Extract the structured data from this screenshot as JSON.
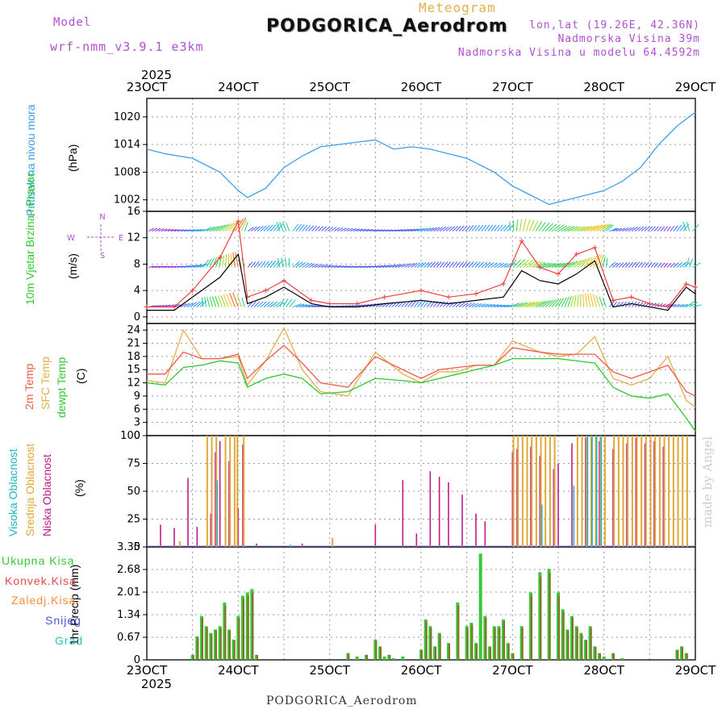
{
  "header": {
    "model_label": "Model",
    "model_name": "wrf-nmm_v3.9.1  e3km",
    "meteogram": "Meteogram",
    "title": "PODGORICA_Aerodrom",
    "lonlat": "lon,lat (19.26E, 42.36N)",
    "elevation": "Nadmorska Visina 39m",
    "model_elevation": "Nadmorska Visina u modelu 64.4592m"
  },
  "footer": {
    "station": "PODGORICA_Aerodrom",
    "credit": "made by Angel"
  },
  "colors": {
    "pressure": "#3aa0e8",
    "wind_black": "#000000",
    "wind_red": "#f04040",
    "temp2m": "#f05a4a",
    "sfc": "#e0b04a",
    "dewpt": "#2ec82e",
    "high_cloud": "#22b3c8",
    "mid_cloud": "#e0a838",
    "low_cloud": "#c01a8a",
    "total_precip": "#38c838",
    "conv_precip": "#e84848",
    "frozen": "#ff8c3a",
    "snow": "#5050e0",
    "grad": "#30c0c0",
    "label_purple": "#b04fd0"
  },
  "chart_data": [
    {
      "type": "line",
      "id": "pressure",
      "ylabel_name": "Pritisak na nivou mora",
      "ylabel_unit": "(hPa)",
      "yticks": [
        "1002",
        "1008",
        "1014",
        "1020"
      ],
      "ylim": [
        999.5,
        1024
      ],
      "x_start": "23OCT",
      "x_end": "29OCT",
      "x_unit": "days",
      "series": [
        {
          "name": "Pritisak",
          "x": [
            0,
            0.2,
            0.5,
            0.8,
            1,
            1.1,
            1.3,
            1.5,
            1.7,
            1.9,
            2.1,
            2.3,
            2.5,
            2.7,
            2.9,
            3.1,
            3.3,
            3.5,
            3.8,
            4.0,
            4.2,
            4.4,
            4.7,
            5.0,
            5.2,
            5.4,
            5.6,
            5.8,
            6.0
          ],
          "y": [
            1013,
            1012,
            1011,
            1008,
            1004,
            1002.5,
            1004.5,
            1009,
            1011.5,
            1013.5,
            1014,
            1014.5,
            1015,
            1013,
            1013.5,
            1013,
            1012,
            1011,
            1008,
            1005,
            1003,
            1001,
            1002.5,
            1004,
            1006,
            1009,
            1014,
            1018,
            1021
          ]
        }
      ]
    },
    {
      "type": "line",
      "id": "wind",
      "ylabel_name": "10m Vjetar Brzina i Pravac",
      "ylabel_unit": "(m/s)",
      "compass": [
        "N",
        "E",
        "S",
        "W"
      ],
      "yticks": [
        "0",
        "4",
        "8",
        "12",
        "16"
      ],
      "ylim": [
        -1,
        16
      ],
      "series": [
        {
          "name": "Brzina",
          "x": [
            0,
            0.3,
            0.5,
            0.8,
            1,
            1.1,
            1.3,
            1.5,
            1.8,
            2.0,
            2.3,
            2.6,
            3.0,
            3.3,
            3.6,
            3.9,
            4.1,
            4.3,
            4.5,
            4.7,
            4.9,
            5.1,
            5.3,
            5.5,
            5.7,
            5.9,
            6.0
          ],
          "y": [
            1,
            1,
            3,
            6,
            9.5,
            2,
            3,
            4.5,
            2,
            1.5,
            1.5,
            2,
            2.5,
            2,
            2.5,
            3,
            7,
            5.5,
            5,
            6.5,
            8.5,
            1.5,
            2,
            1.5,
            1,
            4.5,
            3.5
          ]
        },
        {
          "name": "Udari",
          "x": [
            0,
            0.3,
            0.5,
            0.8,
            1,
            1.1,
            1.3,
            1.5,
            1.8,
            2.0,
            2.3,
            2.6,
            3.0,
            3.3,
            3.6,
            3.9,
            4.1,
            4.3,
            4.5,
            4.7,
            4.9,
            5.1,
            5.3,
            5.5,
            5.7,
            5.9,
            6.0
          ],
          "y": [
            1.5,
            1.5,
            4,
            9,
            14.5,
            3,
            4,
            5.5,
            2.5,
            2,
            2,
            3,
            4,
            3,
            3.5,
            5,
            11.5,
            7.5,
            6.5,
            9.5,
            10.5,
            2.5,
            3,
            2,
            1.5,
            5,
            4.5
          ]
        }
      ]
    },
    {
      "type": "line",
      "id": "temperature",
      "ylabels": [
        "2m Temp",
        "SFC Temp",
        "dewpt Temp"
      ],
      "ylabel_unit": "(C)",
      "yticks": [
        "0",
        "3",
        "6",
        "9",
        "12",
        "15",
        "18",
        "21",
        "24"
      ],
      "ylim": [
        0,
        25.5
      ],
      "series": [
        {
          "name": "2m Temp",
          "x": [
            0,
            0.2,
            0.4,
            0.6,
            0.8,
            1.0,
            1.1,
            1.3,
            1.5,
            1.7,
            1.9,
            2.2,
            2.5,
            2.8,
            3.0,
            3.2,
            3.4,
            3.6,
            3.8,
            4.0,
            4.3,
            4.5,
            4.7,
            4.9,
            5.1,
            5.3,
            5.5,
            5.7,
            5.9,
            6.0
          ],
          "y": [
            14,
            14,
            19,
            17.5,
            17.5,
            18.5,
            13,
            17,
            20.5,
            16.5,
            12,
            11,
            18,
            15,
            13,
            15,
            15.5,
            16,
            16,
            20,
            19,
            18.5,
            18.5,
            18.5,
            14.5,
            13,
            14.5,
            16,
            10,
            9
          ]
        },
        {
          "name": "SFC Temp",
          "x": [
            0,
            0.2,
            0.4,
            0.6,
            0.8,
            1.0,
            1.1,
            1.3,
            1.5,
            1.7,
            1.9,
            2.2,
            2.5,
            2.8,
            3.0,
            3.2,
            3.4,
            3.6,
            3.8,
            4.0,
            4.3,
            4.5,
            4.7,
            4.9,
            5.1,
            5.3,
            5.5,
            5.7,
            5.9,
            6.0
          ],
          "y": [
            12.5,
            12,
            24,
            17.5,
            17.5,
            18,
            11.5,
            17,
            24.5,
            15,
            10,
            9,
            19,
            14,
            12,
            14.5,
            14.5,
            16,
            16,
            21.5,
            19,
            18,
            18.5,
            22.5,
            13,
            11.5,
            13,
            18,
            8,
            6.5
          ]
        },
        {
          "name": "dewpt Temp",
          "x": [
            0,
            0.2,
            0.4,
            0.6,
            0.8,
            1.0,
            1.1,
            1.3,
            1.5,
            1.7,
            1.9,
            2.2,
            2.5,
            2.8,
            3.0,
            3.2,
            3.4,
            3.6,
            3.8,
            4.0,
            4.3,
            4.5,
            4.7,
            4.9,
            5.1,
            5.3,
            5.5,
            5.7,
            5.9,
            6.0
          ],
          "y": [
            12,
            11.5,
            15.5,
            16,
            17,
            16.5,
            11,
            13,
            14,
            13,
            9.5,
            10,
            13,
            12.5,
            12,
            13,
            14,
            15,
            16,
            17.5,
            17.5,
            17.5,
            17,
            16.5,
            11,
            9,
            8.5,
            9.5,
            4,
            1
          ]
        }
      ]
    },
    {
      "type": "bar",
      "id": "clouds",
      "ylabels": [
        "Visoka Oblacnost",
        "Srednja Oblacnost",
        "Niska Oblacnost"
      ],
      "ylabel_unit": "(%)",
      "yticks": [
        "0",
        "25",
        "50",
        "75",
        "100"
      ],
      "ylim": [
        0,
        100
      ],
      "series": [
        {
          "name": "Niska Oblacnost",
          "x": [
            0.15,
            0.3,
            0.45,
            0.55,
            0.7,
            0.75,
            0.8,
            0.9,
            1.0,
            1.05,
            1.2,
            1.7,
            2.5,
            2.8,
            2.95,
            3.1,
            3.2,
            3.3,
            3.45,
            3.6,
            3.7,
            4.0,
            4.05,
            4.2,
            4.3,
            4.45,
            4.5,
            4.65,
            4.8,
            4.95,
            5.1,
            5.25,
            5.35,
            5.45,
            5.55,
            5.65
          ],
          "values": [
            20,
            17,
            62,
            18,
            30,
            85,
            95,
            77,
            35,
            92,
            3,
            3,
            20,
            60,
            12,
            68,
            63,
            58,
            47,
            30,
            23,
            85,
            88,
            90,
            82,
            70,
            75,
            93,
            98,
            95,
            88,
            93,
            98,
            93,
            95,
            90
          ]
        },
        {
          "name": "Srednja Oblacnost",
          "x": [
            0.35,
            0.65,
            0.7,
            0.75,
            0.85,
            0.9,
            0.95,
            0.98,
            1.05,
            2.02,
            4.0,
            4.05,
            4.1,
            4.15,
            4.2,
            4.25,
            4.3,
            4.35,
            4.4,
            4.45,
            4.7,
            4.75,
            4.8,
            4.85,
            4.9,
            4.95,
            5.0,
            5.1,
            5.15,
            5.2,
            5.25,
            5.3,
            5.35,
            5.4,
            5.45,
            5.5,
            5.55,
            5.6,
            5.65,
            5.7,
            5.75,
            5.8,
            5.85,
            5.9
          ],
          "values": [
            5,
            100,
            100,
            100,
            100,
            100,
            100,
            100,
            100,
            8,
            100,
            100,
            100,
            100,
            100,
            100,
            100,
            100,
            100,
            100,
            100,
            100,
            100,
            100,
            100,
            100,
            100,
            100,
            100,
            100,
            100,
            100,
            100,
            100,
            100,
            100,
            100,
            100,
            100,
            100,
            100,
            100,
            100,
            100
          ]
        },
        {
          "name": "Visoka Oblacnost",
          "x": [
            0.75,
            1.55,
            4.3,
            4.65,
            4.8,
            4.85,
            4.9,
            4.95
          ],
          "values": [
            60,
            2,
            38,
            55,
            100,
            100,
            100,
            100
          ]
        }
      ]
    },
    {
      "type": "bar",
      "id": "precip",
      "legend": [
        "Ukupna Kisa",
        "Konvek.Kisa",
        "Zaledj.Kisa",
        "Snijeg",
        "Grad"
      ],
      "ylabel_unit": "1hr Precip (mm)",
      "yticks": [
        "0",
        "0.67",
        "1.34",
        "2.01",
        "2.68",
        "3.35"
      ],
      "ylim": [
        0,
        3.35
      ],
      "series": [
        {
          "name": "Ukupna Kisa",
          "x": [
            0.5,
            0.55,
            0.6,
            0.65,
            0.7,
            0.75,
            0.8,
            0.85,
            0.9,
            0.95,
            1.0,
            1.05,
            1.1,
            1.15,
            1.2,
            2.2,
            2.3,
            2.4,
            2.5,
            2.55,
            2.6,
            2.65,
            2.7,
            2.8,
            3.0,
            3.05,
            3.1,
            3.15,
            3.2,
            3.3,
            3.4,
            3.5,
            3.55,
            3.6,
            3.65,
            3.7,
            3.75,
            3.8,
            3.85,
            3.9,
            3.95,
            4.0,
            4.1,
            4.2,
            4.3,
            4.4,
            4.5,
            4.55,
            4.6,
            4.65,
            4.7,
            4.75,
            4.8,
            4.85,
            4.9,
            4.95,
            5.0,
            5.1,
            5.2,
            5.8,
            5.85,
            5.9
          ],
          "values": [
            0.15,
            0.7,
            1.3,
            1.0,
            0.8,
            0.9,
            1.0,
            1.7,
            0.9,
            0.6,
            1.3,
            1.9,
            2.0,
            2.1,
            0.15,
            0.2,
            0.1,
            0.15,
            0.6,
            0.4,
            0.1,
            0.15,
            0.05,
            0.1,
            0.3,
            1.2,
            1.0,
            0.4,
            0.8,
            0.5,
            1.7,
            1.0,
            1.1,
            0.5,
            3.15,
            1.3,
            0.4,
            1.0,
            1.0,
            1.2,
            0.5,
            0.2,
            1.0,
            2.0,
            2.6,
            2.7,
            2.0,
            1.5,
            0.9,
            1.3,
            1.0,
            0.8,
            0.6,
            1.0,
            0.4,
            0.2,
            0.1,
            0.2,
            0.05,
            0.3,
            0.4,
            0.2
          ]
        }
      ]
    }
  ],
  "x_axis": {
    "year": "2025",
    "ticks": [
      "23OCT",
      "24OCT",
      "25OCT",
      "26OCT",
      "27OCT",
      "28OCT",
      "29OCT"
    ]
  }
}
